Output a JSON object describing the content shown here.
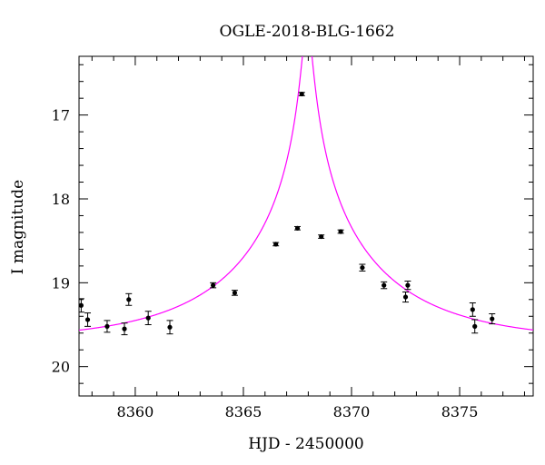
{
  "chart_data": {
    "type": "scatter",
    "title": "OGLE-2018-BLG-1662",
    "xlabel": "HJD - 2450000",
    "ylabel": "I magnitude",
    "xlim": [
      8357.4,
      8378.4
    ],
    "ylim": [
      20.35,
      16.3
    ],
    "y_inverted": true,
    "grid": false,
    "x_ticks_major": [
      8360,
      8365,
      8370,
      8375
    ],
    "x_ticks_minor_step": 1,
    "y_ticks_major": [
      17,
      18,
      19,
      20
    ],
    "y_ticks_minor_step": 0.2,
    "colors": {
      "model": "#ff00ff",
      "points": "#000000"
    },
    "series": [
      {
        "type": "scatter",
        "points": [
          {
            "x": 8357.5,
            "y": 19.27,
            "err": 0.08
          },
          {
            "x": 8357.8,
            "y": 19.44,
            "err": 0.08
          },
          {
            "x": 8358.7,
            "y": 19.52,
            "err": 0.07
          },
          {
            "x": 8359.5,
            "y": 19.55,
            "err": 0.07
          },
          {
            "x": 8359.7,
            "y": 19.2,
            "err": 0.07
          },
          {
            "x": 8360.6,
            "y": 19.42,
            "err": 0.08
          },
          {
            "x": 8361.6,
            "y": 19.53,
            "err": 0.08
          },
          {
            "x": 8363.6,
            "y": 19.03,
            "err": 0.03
          },
          {
            "x": 8364.6,
            "y": 19.12,
            "err": 0.03
          },
          {
            "x": 8366.5,
            "y": 18.54,
            "err": 0.02
          },
          {
            "x": 8367.5,
            "y": 18.35,
            "err": 0.02
          },
          {
            "x": 8367.7,
            "y": 16.75,
            "err": 0.02
          },
          {
            "x": 8368.6,
            "y": 18.45,
            "err": 0.02
          },
          {
            "x": 8369.5,
            "y": 18.39,
            "err": 0.02
          },
          {
            "x": 8370.5,
            "y": 18.82,
            "err": 0.04
          },
          {
            "x": 8371.5,
            "y": 19.03,
            "err": 0.04
          },
          {
            "x": 8372.5,
            "y": 19.17,
            "err": 0.06
          },
          {
            "x": 8372.6,
            "y": 19.03,
            "err": 0.05
          },
          {
            "x": 8375.6,
            "y": 19.32,
            "err": 0.08
          },
          {
            "x": 8375.7,
            "y": 19.52,
            "err": 0.08
          },
          {
            "x": 8376.5,
            "y": 19.43,
            "err": 0.06
          }
        ]
      },
      {
        "type": "line",
        "model": {
          "form": "point-lens",
          "t0": 8367.95,
          "tE": 7.0,
          "u0": 0.03,
          "baseline_mag": 19.7,
          "x_range": [
            8357.4,
            8378.4
          ]
        }
      }
    ]
  }
}
